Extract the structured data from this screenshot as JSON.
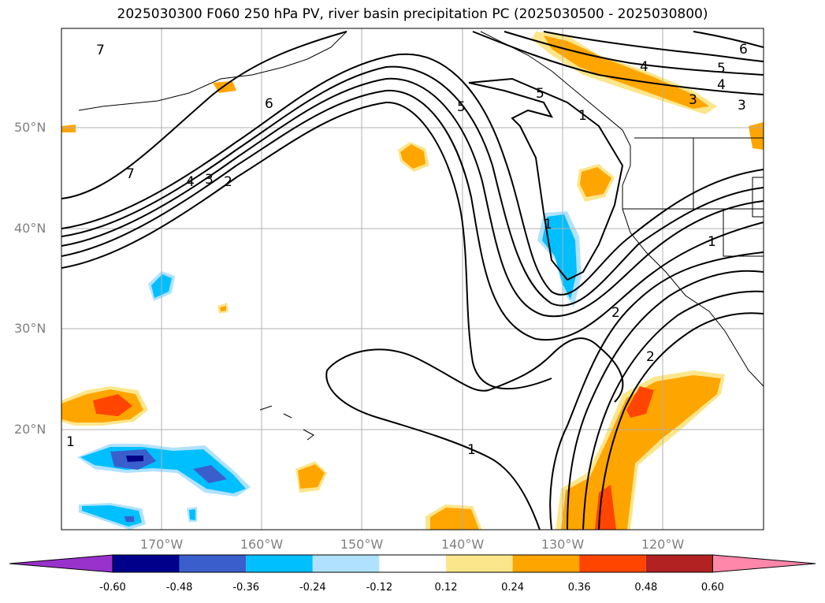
{
  "title": "2025030300 F060 250 hPa PV, river basin precipitation PC (2025030500 - 2025030800)",
  "latitude_labels": [
    "50°N",
    "40°N",
    "30°N",
    "20°N"
  ],
  "longitude_labels": [
    "170°W",
    "160°W",
    "150°W",
    "140°W",
    "130°W",
    "120°W"
  ],
  "contour_labels": [
    "7",
    "6",
    "5",
    "4",
    "3",
    "2",
    "1",
    "7",
    "4",
    "3",
    "2",
    "5",
    "4",
    "3",
    "6",
    "5",
    "1",
    "2",
    "1",
    "1",
    "1"
  ],
  "colorbar": {
    "ticks": [
      "-0.60",
      "-0.48",
      "-0.36",
      "-0.24",
      "-0.12",
      "0.12",
      "0.24",
      "0.36",
      "0.48",
      "0.60"
    ],
    "colors": [
      "#9932cc",
      "#00008b",
      "#3a5fcd",
      "#00bfff",
      "#b0e2ff",
      "#ffffff",
      "#fce68c",
      "#ffa500",
      "#ff4500",
      "#b22222",
      "#ff88aa"
    ]
  }
}
